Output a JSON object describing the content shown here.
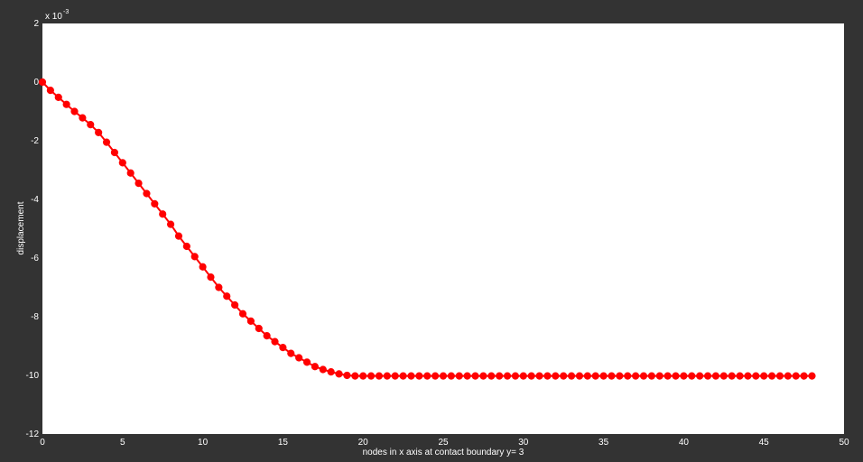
{
  "chart_data": {
    "type": "line",
    "title": "",
    "xlabel": "nodes in x axis at contact boundary y= 3",
    "ylabel": "displacement",
    "exponent_base": "x 10",
    "exponent_power": "-3",
    "xlim": [
      0,
      50
    ],
    "ylim": [
      -12,
      2
    ],
    "x_ticks": [
      0,
      5,
      10,
      15,
      20,
      25,
      30,
      35,
      40,
      45,
      50
    ],
    "y_ticks": [
      2,
      0,
      -2,
      -4,
      -6,
      -8,
      -10,
      -12
    ],
    "grid": false,
    "series": [
      {
        "color": "#ff0000",
        "marker": "circle",
        "x": [
          0,
          0.5,
          1,
          1.5,
          2,
          2.5,
          3,
          3.5,
          4,
          4.5,
          5,
          5.5,
          6,
          6.5,
          7,
          7.5,
          8,
          8.5,
          9,
          9.5,
          10,
          10.5,
          11,
          11.5,
          12,
          12.5,
          13,
          13.5,
          14,
          14.5,
          15,
          15.5,
          16,
          16.5,
          17,
          17.5,
          18,
          18.5,
          19,
          19.5,
          20,
          20.5,
          21,
          21.5,
          22,
          22.5,
          23,
          23.5,
          24,
          24.5,
          25,
          25.5,
          26,
          26.5,
          27,
          27.5,
          28,
          28.5,
          29,
          29.5,
          30,
          30.5,
          31,
          31.5,
          32,
          32.5,
          33,
          33.5,
          34,
          34.5,
          35,
          35.5,
          36,
          36.5,
          37,
          37.5,
          38,
          38.5,
          39,
          39.5,
          40,
          40.5,
          41,
          41.5,
          42,
          42.5,
          43,
          43.5,
          44,
          44.5,
          45,
          45.5,
          46,
          46.5,
          47,
          47.5,
          48
        ],
        "y": [
          0,
          -0.28,
          -0.52,
          -0.76,
          -1.0,
          -1.22,
          -1.45,
          -1.72,
          -2.05,
          -2.4,
          -2.75,
          -3.1,
          -3.45,
          -3.8,
          -4.15,
          -4.5,
          -4.85,
          -5.25,
          -5.6,
          -5.95,
          -6.3,
          -6.65,
          -7.0,
          -7.3,
          -7.6,
          -7.9,
          -8.15,
          -8.4,
          -8.65,
          -8.85,
          -9.05,
          -9.25,
          -9.4,
          -9.55,
          -9.7,
          -9.8,
          -9.88,
          -9.95,
          -10.0,
          -10.02,
          -10.02,
          -10.02,
          -10.02,
          -10.02,
          -10.02,
          -10.02,
          -10.02,
          -10.02,
          -10.02,
          -10.02,
          -10.02,
          -10.02,
          -10.02,
          -10.02,
          -10.02,
          -10.02,
          -10.02,
          -10.02,
          -10.02,
          -10.02,
          -10.02,
          -10.02,
          -10.02,
          -10.02,
          -10.02,
          -10.02,
          -10.02,
          -10.02,
          -10.02,
          -10.02,
          -10.02,
          -10.02,
          -10.02,
          -10.02,
          -10.02,
          -10.02,
          -10.02,
          -10.02,
          -10.02,
          -10.02,
          -10.02,
          -10.02,
          -10.02,
          -10.02,
          -10.02,
          -10.02,
          -10.02,
          -10.02,
          -10.02,
          -10.02,
          -10.02,
          -10.02,
          -10.02,
          -10.02,
          -10.02,
          -10.02,
          -10.02
        ]
      }
    ]
  }
}
